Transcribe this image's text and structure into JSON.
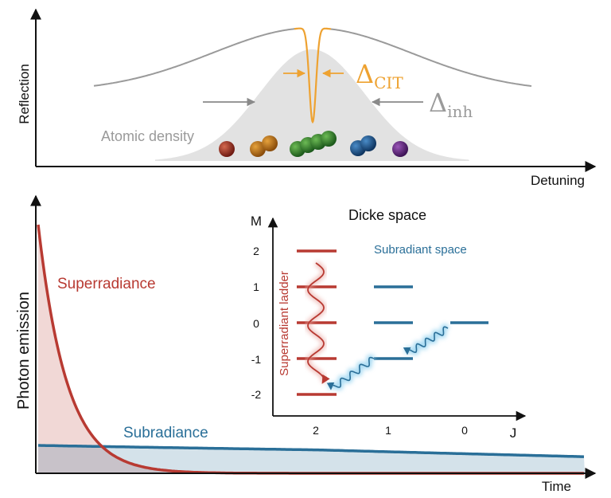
{
  "top_panel": {
    "y_axis_label": "Reflection",
    "x_axis_label": "Detuning",
    "density_label": "Atomic density",
    "delta_cit": {
      "symbol": "Δ",
      "subscript": "CIT"
    },
    "delta_inh": {
      "symbol": "Δ",
      "subscript": "inh"
    }
  },
  "bottom_panel": {
    "y_axis_label": "Photon emission",
    "x_axis_label": "Time",
    "superradiance_label": "Superradiance",
    "subradiance_label": "Subradiance"
  },
  "dicke": {
    "title": "Dicke space",
    "m_axis_label": "M",
    "j_axis_label": "J",
    "m_ticks": [
      "2",
      "1",
      "0",
      "-1",
      "-2"
    ],
    "j_ticks": [
      "2",
      "1",
      "0"
    ],
    "superradiant_label": "Superradiant ladder",
    "subradiant_label": "Subradiant space"
  },
  "colors": {
    "super_red": "#b83a32",
    "sub_blue": "#2a6f98",
    "orange": "#eea231",
    "gray_curve": "#9a9a9a",
    "gray_fill": "#e2e2e2",
    "gray_text": "#9a9a9a"
  }
}
